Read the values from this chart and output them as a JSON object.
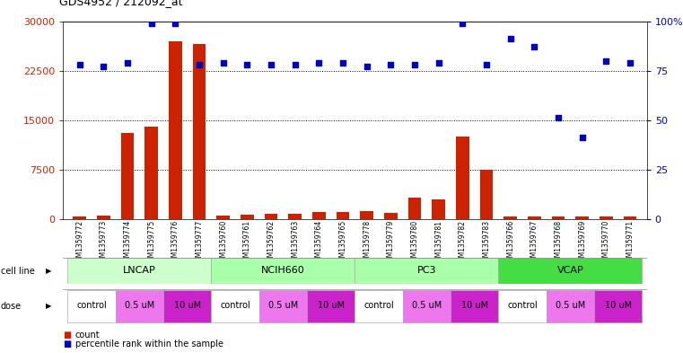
{
  "title": "GDS4952 / 212092_at",
  "gsm_labels": [
    "GSM1359772",
    "GSM1359773",
    "GSM1359774",
    "GSM1359775",
    "GSM1359776",
    "GSM1359777",
    "GSM1359760",
    "GSM1359761",
    "GSM1359762",
    "GSM1359763",
    "GSM1359764",
    "GSM1359765",
    "GSM1359778",
    "GSM1359779",
    "GSM1359780",
    "GSM1359781",
    "GSM1359782",
    "GSM1359783",
    "GSM1359766",
    "GSM1359767",
    "GSM1359768",
    "GSM1359769",
    "GSM1359770",
    "GSM1359771"
  ],
  "counts": [
    400,
    500,
    13000,
    14000,
    27000,
    26500,
    500,
    700,
    800,
    750,
    1100,
    1100,
    1200,
    900,
    3200,
    3000,
    12500,
    7500,
    300,
    300,
    400,
    400,
    400,
    350
  ],
  "percentiles": [
    78,
    77,
    79,
    99,
    99,
    78,
    79,
    78,
    78,
    78,
    79,
    79,
    77,
    78,
    78,
    79,
    99,
    78,
    91,
    87,
    51,
    41,
    80,
    79
  ],
  "cell_lines": [
    "LNCAP",
    "NCIH660",
    "PC3",
    "VCAP"
  ],
  "cell_bg_colors": [
    "#ccffcc",
    "#aaffaa",
    "#aaffaa",
    "#44dd44"
  ],
  "cell_line_spans": [
    [
      0,
      6
    ],
    [
      6,
      12
    ],
    [
      12,
      18
    ],
    [
      18,
      24
    ]
  ],
  "dose_labels": [
    "control",
    "0.5 uM",
    "10 uM"
  ],
  "dose_colors": [
    "#ffffff",
    "#ee77ee",
    "#cc22cc"
  ],
  "bar_color": "#cc2200",
  "dot_color": "#0000bb",
  "ylim_left": [
    0,
    30000
  ],
  "ylim_right": [
    0,
    100
  ],
  "yticks_left": [
    0,
    7500,
    15000,
    22500,
    30000
  ],
  "yticks_right": [
    0,
    25,
    50,
    75,
    100
  ]
}
